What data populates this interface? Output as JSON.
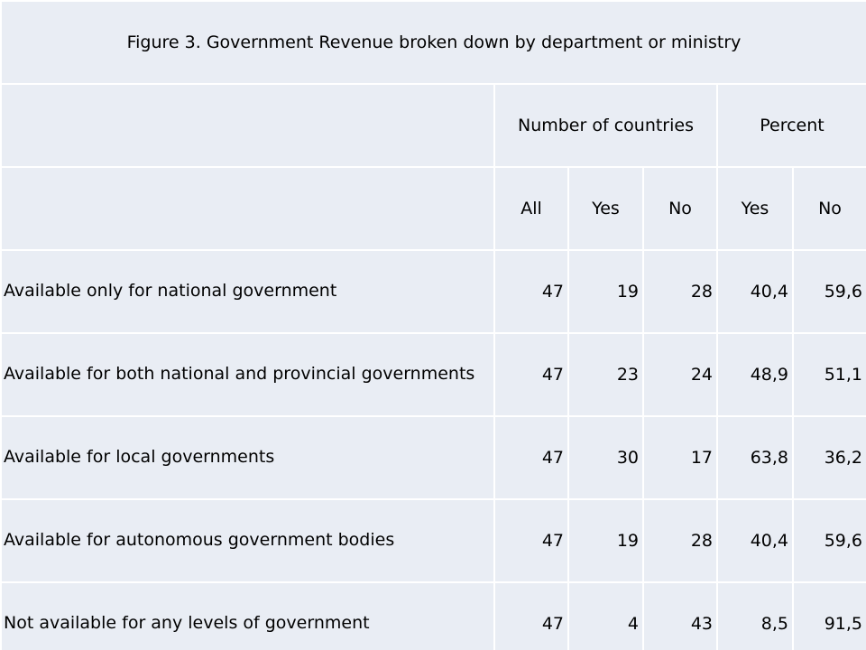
{
  "title": "Figure 3. Government Revenue broken down by department or ministry",
  "group_headers": {
    "count": "Number of countries",
    "percent": "Percent"
  },
  "sub_headers": {
    "all": "All",
    "count_yes": "Yes",
    "count_no": "No",
    "pct_yes": "Yes",
    "pct_no": "No"
  },
  "rows": [
    {
      "label": "Available only for national government",
      "all": "47",
      "yes": "19",
      "no": "28",
      "pct_yes": "40,4",
      "pct_no": "59,6"
    },
    {
      "label": "Available for both national and provincial governments",
      "all": "47",
      "yes": "23",
      "no": "24",
      "pct_yes": "48,9",
      "pct_no": "51,1"
    },
    {
      "label": "Available for local governments",
      "all": "47",
      "yes": "30",
      "no": "17",
      "pct_yes": "63,8",
      "pct_no": "36,2"
    },
    {
      "label": "Available for autonomous government bodies",
      "all": "47",
      "yes": "19",
      "no": "28",
      "pct_yes": "40,4",
      "pct_no": "59,6"
    },
    {
      "label": "Not available for any levels of government",
      "all": "47",
      "yes": "4",
      "no": "43",
      "pct_yes": "8,5",
      "pct_no": "91,5"
    }
  ]
}
